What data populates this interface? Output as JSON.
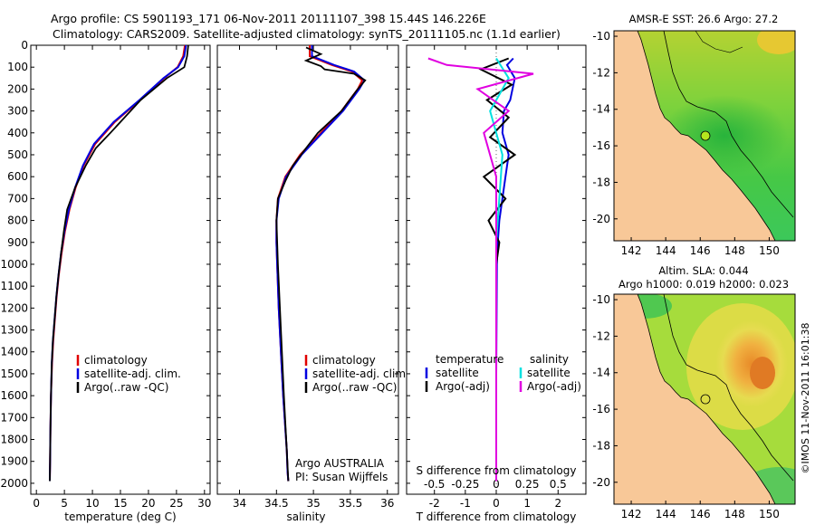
{
  "header": {
    "title_line1": "Argo profile: CS 5901193_171 06-Nov-2011 20111107_398 15.44S 146.226E",
    "title_line2": "Climatology: CARS2009. Satellite-adjusted climatology: synTS_20111105.nc (1.1d earlier)"
  },
  "colors": {
    "climatology": "#e00000",
    "satellite": "#0000e0",
    "argo": "#000000",
    "sal_satellite": "#00e0e0",
    "sal_argo": "#e000e0",
    "land": "#f8c898",
    "sea_green": "#3cd23c"
  },
  "legend": {
    "climatology": "climatology",
    "satellite_adj": "satellite-adj. clim.",
    "argo_raw": "Argo(..raw -QC)",
    "temperature": "temperature",
    "salinity": "salinity",
    "satellite": "satellite",
    "argo_adj": "Argo(-adj)"
  },
  "source": {
    "line1": "Argo AUSTRALIA",
    "line2": "PI: Susan Wijffels"
  },
  "chart_data": [
    {
      "type": "line",
      "title": "",
      "xlabel": "temperature (deg C)",
      "ylabel": "",
      "xlim": [
        -1,
        31
      ],
      "ylim": [
        2050,
        0
      ],
      "xticks": [
        0,
        5,
        10,
        15,
        20,
        25,
        30
      ],
      "yticks": [
        0,
        100,
        200,
        300,
        400,
        500,
        600,
        700,
        800,
        900,
        1000,
        1100,
        1200,
        1300,
        1400,
        1500,
        1600,
        1700,
        1800,
        1900,
        2000
      ],
      "series": [
        {
          "name": "climatology",
          "color_key": "climatology",
          "x": [
            26.5,
            26.2,
            25.2,
            22.8,
            18.5,
            14.0,
            10.5,
            8.4,
            7.0,
            5.9,
            5.1,
            4.5,
            4.0,
            3.6,
            3.3,
            3.0,
            2.8,
            2.6,
            2.5,
            2.45,
            2.4
          ],
          "y": [
            0,
            50,
            100,
            150,
            250,
            350,
            450,
            550,
            650,
            750,
            850,
            950,
            1050,
            1150,
            1250,
            1350,
            1450,
            1600,
            1750,
            1900,
            1990
          ]
        },
        {
          "name": "satellite-adj. clim.",
          "color_key": "satellite",
          "x": [
            26.7,
            26.4,
            25.3,
            22.7,
            18.4,
            13.8,
            10.3,
            8.3,
            6.9,
            5.8,
            5.0,
            4.4,
            3.95,
            3.55,
            3.25,
            2.95,
            2.75,
            2.6,
            2.5,
            2.45,
            2.4
          ],
          "y": [
            0,
            50,
            100,
            150,
            250,
            350,
            450,
            550,
            650,
            750,
            850,
            950,
            1050,
            1150,
            1250,
            1350,
            1450,
            1600,
            1750,
            1900,
            1990
          ]
        },
        {
          "name": "Argo(..raw -QC)",
          "color_key": "argo",
          "x": [
            27.1,
            26.9,
            26.4,
            23.3,
            18.6,
            13.2,
            10.6,
            8.8,
            6.9,
            5.5,
            4.9,
            4.4,
            3.95,
            3.55,
            3.25,
            2.95,
            2.75,
            2.6,
            2.5,
            2.45,
            2.4
          ],
          "y": [
            0,
            50,
            100,
            150,
            250,
            400,
            470,
            550,
            650,
            750,
            850,
            950,
            1050,
            1150,
            1250,
            1350,
            1450,
            1600,
            1750,
            1900,
            1990
          ]
        }
      ]
    },
    {
      "type": "line",
      "title": "",
      "xlabel": "salinity",
      "ylabel": "",
      "xlim": [
        33.7,
        36.15
      ],
      "ylim": [
        2050,
        0
      ],
      "xticks": [
        34,
        34.5,
        35,
        35.5,
        36
      ],
      "series": [
        {
          "name": "climatology",
          "color_key": "climatology",
          "x": [
            34.95,
            34.95,
            35.25,
            35.52,
            35.66,
            35.6,
            35.38,
            35.1,
            34.82,
            34.62,
            34.52,
            34.5,
            34.5,
            34.51,
            34.53,
            34.56,
            34.59,
            34.62,
            34.64,
            34.65,
            34.66
          ],
          "y": [
            0,
            50,
            90,
            120,
            160,
            200,
            300,
            400,
            500,
            600,
            700,
            800,
            900,
            1000,
            1200,
            1400,
            1600,
            1750,
            1850,
            1950,
            1990
          ]
        },
        {
          "name": "satellite-adj. clim.",
          "color_key": "satellite",
          "x": [
            34.98,
            34.98,
            35.28,
            35.55,
            35.69,
            35.62,
            35.4,
            35.12,
            34.84,
            34.63,
            34.53,
            34.5,
            34.5,
            34.51,
            34.53,
            34.56,
            34.59,
            34.62,
            34.64,
            34.65,
            34.66
          ],
          "y": [
            0,
            50,
            90,
            120,
            160,
            200,
            300,
            400,
            500,
            600,
            700,
            800,
            900,
            1000,
            1200,
            1400,
            1600,
            1750,
            1850,
            1950,
            1990
          ]
        },
        {
          "name": "Argo(..raw -QC)",
          "color_key": "argo",
          "x": [
            34.9,
            35.1,
            34.9,
            35.1,
            35.15,
            35.55,
            35.7,
            35.6,
            35.38,
            35.06,
            34.9,
            34.72,
            34.62,
            34.52,
            34.5,
            34.52,
            34.56,
            34.6,
            34.64,
            34.66
          ],
          "y": [
            10,
            40,
            70,
            95,
            110,
            130,
            160,
            200,
            300,
            400,
            470,
            550,
            620,
            700,
            800,
            1000,
            1300,
            1600,
            1850,
            1990
          ]
        }
      ]
    },
    {
      "type": "line",
      "title": "",
      "xlabel": "T difference from climatology",
      "ylabel": "",
      "xlim": [
        -2.9,
        2.9
      ],
      "ylim": [
        2050,
        0
      ],
      "xticks": [
        -2,
        -1,
        0,
        1,
        2
      ],
      "secondary_xlabel": "S difference from climatology",
      "secondary_xticks": [
        -0.5,
        -0.25,
        0,
        0.25,
        0.5
      ],
      "series": [
        {
          "name": "temperature satellite",
          "color_key": "satellite",
          "x": [
            0.55,
            0.35,
            0.6,
            0.45,
            0.25,
            0.2,
            0.4,
            0.3,
            0.2,
            0.1,
            0.05,
            0.02,
            0.0,
            0.0
          ],
          "y": [
            60,
            90,
            150,
            250,
            300,
            400,
            500,
            600,
            700,
            800,
            900,
            1000,
            1500,
            1990
          ]
        },
        {
          "name": "temperature Argo(-adj)",
          "color_key": "argo",
          "x": [
            0.4,
            -0.5,
            0.5,
            -0.3,
            0.4,
            -0.2,
            0.6,
            -0.4,
            0.3,
            -0.25,
            0.1,
            0.0,
            0.0
          ],
          "y": [
            60,
            110,
            180,
            250,
            330,
            420,
            500,
            600,
            700,
            800,
            900,
            1000,
            1990
          ]
        },
        {
          "name": "salinity satellite",
          "color_key": "sal_satellite",
          "x": [
            0.0,
            0.1,
            -0.05,
            0.05,
            0.0,
            0.0,
            0.0
          ],
          "y": [
            60,
            150,
            300,
            500,
            900,
            1500,
            1990
          ]
        },
        {
          "name": "salinity Argo(-adj)",
          "color_key": "sal_argo",
          "x": [
            -0.55,
            -0.4,
            0.3,
            -0.15,
            0.1,
            -0.1,
            0.0,
            0.0
          ],
          "y": [
            60,
            90,
            130,
            200,
            300,
            400,
            600,
            1990
          ]
        }
      ]
    }
  ],
  "maps": {
    "sst": {
      "title": "AMSR-E SST: 26.6 Argo: 27.2",
      "xticks": [
        142,
        144,
        146,
        148,
        150
      ],
      "yticks": [
        -10,
        -12,
        -14,
        -16,
        -18,
        -20
      ],
      "xlim": [
        141,
        151.5
      ],
      "ylim": [
        -21.2,
        -9.7
      ],
      "marker": {
        "lon": 146.226,
        "lat": -15.44
      }
    },
    "sla": {
      "title_line1": "Altim. SLA: 0.044",
      "title_line2": "Argo h1000: 0.019 h2000: 0.023",
      "xticks": [
        142,
        144,
        146,
        148,
        150
      ],
      "yticks": [
        -10,
        -12,
        -14,
        -16,
        -18,
        -20
      ],
      "xlim": [
        141,
        151.5
      ],
      "ylim": [
        -21.2,
        -9.7
      ],
      "marker": {
        "lon": 146.226,
        "lat": -15.44
      }
    }
  },
  "credit": "©IMOS 11-Nov-2011 16:01:38"
}
